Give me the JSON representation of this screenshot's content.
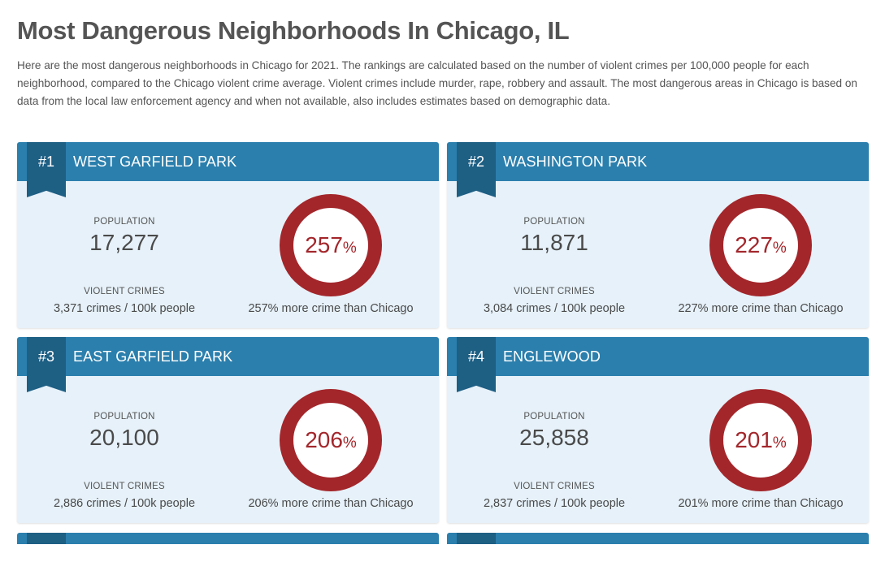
{
  "page": {
    "title": "Most Dangerous Neighborhoods In Chicago, IL",
    "intro": "Here are the most dangerous neighborhoods in Chicago for 2021. The rankings are calculated based on the number of violent crimes per 100,000 people for each neighborhood, compared to the Chicago violent crime average. Violent crimes include murder, rape, robbery and assault. The most dangerous areas in Chicago is based on data from the local law enforcement agency and when not available, also includes estimates based on demographic data."
  },
  "labels": {
    "population": "POPULATION",
    "violent_crimes": "VIOLENT CRIMES",
    "percent_unit": "%"
  },
  "colors": {
    "header": "#2b7fad",
    "ribbon": "#1e5f84",
    "card_bg": "#e6f1f9",
    "ring": "#a3262b"
  },
  "neighborhoods": [
    {
      "rank": "#1",
      "name": "WEST GARFIELD PARK",
      "population": "17,277",
      "crimes": "3,371 crimes / 100k people",
      "percent": "257",
      "compare": "257% more crime than Chicago"
    },
    {
      "rank": "#2",
      "name": "WASHINGTON PARK",
      "population": "11,871",
      "crimes": "3,084 crimes / 100k people",
      "percent": "227",
      "compare": "227% more crime than Chicago"
    },
    {
      "rank": "#3",
      "name": "EAST GARFIELD PARK",
      "population": "20,100",
      "crimes": "2,886 crimes / 100k people",
      "percent": "206",
      "compare": "206% more crime than Chicago"
    },
    {
      "rank": "#4",
      "name": "ENGLEWOOD",
      "population": "25,858",
      "crimes": "2,837 crimes / 100k people",
      "percent": "201",
      "compare": "201% more crime than Chicago"
    }
  ]
}
